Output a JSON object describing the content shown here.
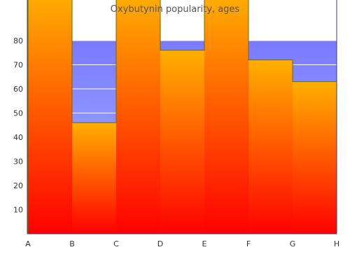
{
  "chart_data": {
    "type": "area",
    "title": "Oxybutynin popularity, ages",
    "xlabel": "",
    "ylabel": "",
    "categories": [
      "A",
      "B",
      "C",
      "D",
      "E",
      "F",
      "G",
      "H"
    ],
    "ylim": [
      0,
      80
    ],
    "yticks": [
      10,
      20,
      30,
      40,
      50,
      60,
      70,
      80
    ],
    "series": [
      {
        "values": [
          100,
          46,
          100,
          76,
          100,
          72,
          63,
          63
        ]
      }
    ],
    "background_band": {
      "from": 0,
      "to": 80
    },
    "colors": {
      "fill_top": "#ffb000",
      "fill_bottom": "#ff0000",
      "band_top": "#7a7aff",
      "band_bottom": "#a8b8ff",
      "step_line": "#6b6b00",
      "axis": "#3f3f6f"
    }
  }
}
